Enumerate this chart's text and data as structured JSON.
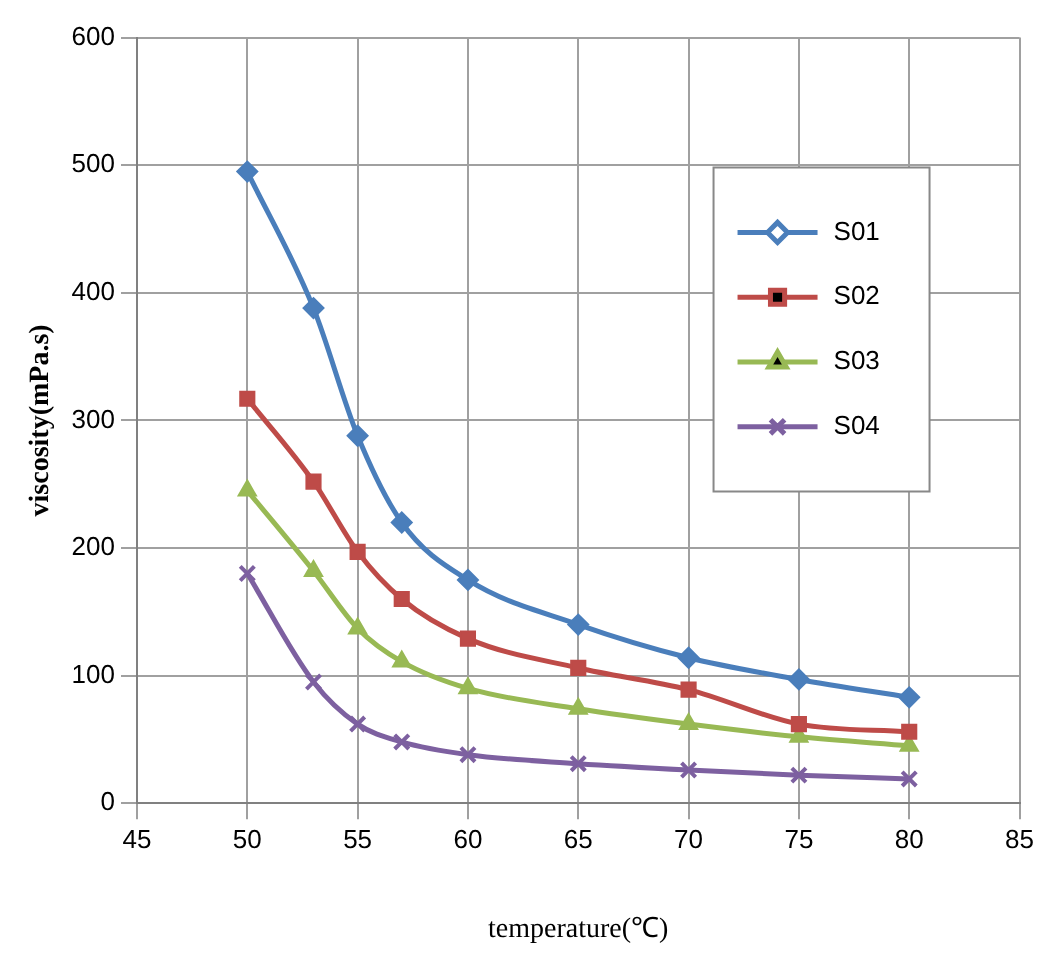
{
  "chart_data": {
    "type": "line",
    "xlabel": "temperature(℃)",
    "ylabel": "viscosity(mPa.s)",
    "x": [
      50,
      53,
      55,
      57,
      60,
      65,
      70,
      75,
      80
    ],
    "xlim": [
      45,
      85
    ],
    "xticks": [
      45,
      50,
      55,
      60,
      65,
      70,
      75,
      80,
      85
    ],
    "ylim": [
      0,
      600
    ],
    "yticks": [
      0,
      100,
      200,
      300,
      400,
      500,
      600
    ],
    "grid": true,
    "legend": "top right",
    "series": [
      {
        "name": "S01",
        "color": "#4a7ebb",
        "marker": "diamond",
        "values": [
          495,
          388,
          288,
          220,
          175,
          140,
          114,
          97,
          83
        ]
      },
      {
        "name": "S02",
        "color": "#be4b48",
        "marker": "square",
        "values": [
          317,
          252,
          197,
          160,
          129,
          106,
          89,
          62,
          56
        ]
      },
      {
        "name": "S03",
        "color": "#98b954",
        "marker": "triangle",
        "values": [
          245,
          182,
          137,
          111,
          90,
          74,
          62,
          52,
          45
        ]
      },
      {
        "name": "S04",
        "color": "#7d60a0",
        "marker": "cross",
        "values": [
          180,
          95,
          62,
          48,
          38,
          31,
          26,
          22,
          19
        ]
      }
    ]
  }
}
